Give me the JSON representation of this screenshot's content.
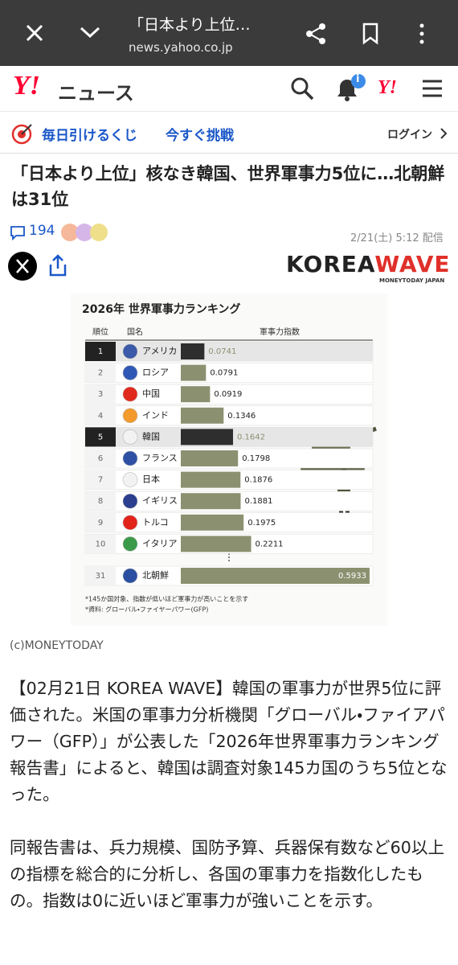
{
  "browser": {
    "tab_title": "「日本より上位…",
    "url": "news.yahoo.co.jp"
  },
  "header": {
    "logo_mark": "Y!",
    "logo_text": "ニュース",
    "badge": "i",
    "menu_logo": "Y!"
  },
  "promo": {
    "text": "毎日引けるくじ",
    "cta": "今すぐ挑戦",
    "login": "ログイン"
  },
  "article": {
    "title": "「日本より上位」核なき韓国、世界軍事力5位に…北朝鮮は31位",
    "comments": 194,
    "date": "2/21(土) 5:12 配信",
    "brand": {
      "part1": "KOREA",
      "part2": "WAVE",
      "sub": "MONEYTODAY JAPAN"
    },
    "credit": "(c)MONEYTODAY",
    "paragraphs": [
      "【02月21日 KOREA WAVE】韓国の軍事力が世界5位に評価された。米国の軍事力分析機関「グローバル・ファイアパワー（GFP）」が公表した「2026年世界軍事力ランキング報告書」によると、韓国は調査対象145カ国のうち5位となった。",
      "同報告書は、兵力規模、国防予算、兵器保有数など60以上の指標を総合的に分析し、各国の軍事力を指数化したもの。指数は0に近いほど軍事力が強いことを示す。"
    ]
  },
  "ranking": {
    "type": "bar",
    "title": "2026年 世界軍事力ランキング",
    "headers": [
      "順位",
      "国名",
      "軍事力指数"
    ],
    "rows": [
      {
        "rank": 1,
        "country": "アメリカ",
        "value": 0.0741,
        "color": "#2e2e2e",
        "flag_color": "#3b5aa8"
      },
      {
        "rank": 2,
        "country": "ロシア",
        "value": 0.0791,
        "color": "#8b9170",
        "flag_color": "#2f57b5"
      },
      {
        "rank": 3,
        "country": "中国",
        "value": 0.0919,
        "color": "#8b9170",
        "flag_color": "#e02a1c"
      },
      {
        "rank": 4,
        "country": "インド",
        "value": 0.1346,
        "color": "#8b9170",
        "flag_color": "#f39a2c"
      },
      {
        "rank": 5,
        "country": "韓国",
        "value": 0.1642,
        "color": "#2e2e2e",
        "flag_color": "#f2f2f2"
      },
      {
        "rank": 6,
        "country": "フランス",
        "value": 0.1798,
        "color": "#8b9170",
        "flag_color": "#2e4fa3"
      },
      {
        "rank": 7,
        "country": "日本",
        "value": 0.1876,
        "color": "#8b9170",
        "flag_color": "#f2f2f2"
      },
      {
        "rank": 8,
        "country": "イギリス",
        "value": 0.1881,
        "color": "#8b9170",
        "flag_color": "#2c3f8f"
      },
      {
        "rank": 9,
        "country": "トルコ",
        "value": 0.1975,
        "color": "#8b9170",
        "flag_color": "#e2231a"
      },
      {
        "rank": 10,
        "country": "イタリア",
        "value": 0.2211,
        "color": "#8b9170",
        "flag_color": "#3a9a4a"
      },
      {
        "rank": 31,
        "country": "北朝鮮",
        "value": 0.5933,
        "color": "#8b9170",
        "flag_color": "#2a4fa0"
      }
    ],
    "notes": [
      "*145か国対象、指数が低いほど軍事力が高いことを示す",
      "*資料: グローバル・ファイヤーパワー(GFP)"
    ]
  }
}
